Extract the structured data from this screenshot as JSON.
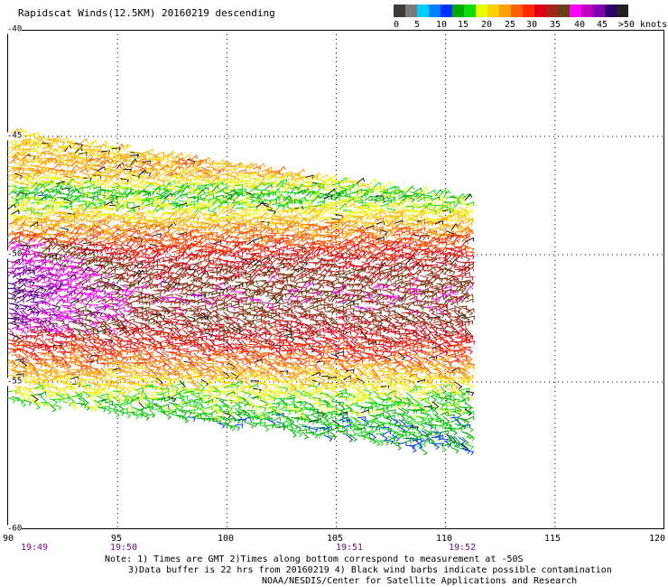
{
  "title": "Rapidscat Winds(12.5KM) 20160219 descending",
  "legend": {
    "colors": [
      "#3c3c3c",
      "#7a7a7a",
      "#00ccff",
      "#0080ff",
      "#0030ff",
      "#00aa00",
      "#10dd10",
      "#e8ff00",
      "#ffd000",
      "#ffa000",
      "#ff6000",
      "#ff2a00",
      "#e0001a",
      "#a02818",
      "#6a3f14",
      "#ff00ff",
      "#c000c0",
      "#8000b0",
      "#30006a",
      "#202020"
    ],
    "labels": [
      "0",
      "5",
      "10",
      "15",
      "20",
      "25",
      "30",
      "35",
      "40",
      "45",
      ">50 knots"
    ]
  },
  "axes": {
    "lon_ticks": [
      "90",
      "95",
      "100",
      "105",
      "110",
      "115",
      "120"
    ],
    "lat_ticks": [
      "-40",
      "-45",
      "-50",
      "-55",
      "-60"
    ],
    "time_labels": [
      "19:49",
      "19:50",
      "19:51",
      "19:52"
    ]
  },
  "swath": {
    "lon_range": [
      90,
      111
    ],
    "lat_range": [
      -45,
      -57.5
    ],
    "speed_bands_knots": [
      {
        "lat": -45.5,
        "speed": 22
      },
      {
        "lat": -46.5,
        "speed": 24
      },
      {
        "lat": -47.5,
        "speed": 15
      },
      {
        "lat": -48.5,
        "speed": 22
      },
      {
        "lat": -49.5,
        "speed": 28
      },
      {
        "lat": -50.5,
        "speed": 33
      },
      {
        "lat": -51.5,
        "speed": 36
      },
      {
        "lat": -52.5,
        "speed": 34
      },
      {
        "lat": -53.5,
        "speed": 30
      },
      {
        "lat": -54.5,
        "speed": 24
      },
      {
        "lat": -55.5,
        "speed": 17
      },
      {
        "lat": -56.5,
        "speed": 14
      }
    ]
  },
  "notes": [
    "Note: 1) Times are GMT 2)Times along bottom correspond to measurement at -50S",
    "3)Data buffer is 22 hrs from 20160219 4) Black wind barbs indicate possible contamination",
    "NOAA/NESDIS/Center for Satellite Applications and Research"
  ]
}
